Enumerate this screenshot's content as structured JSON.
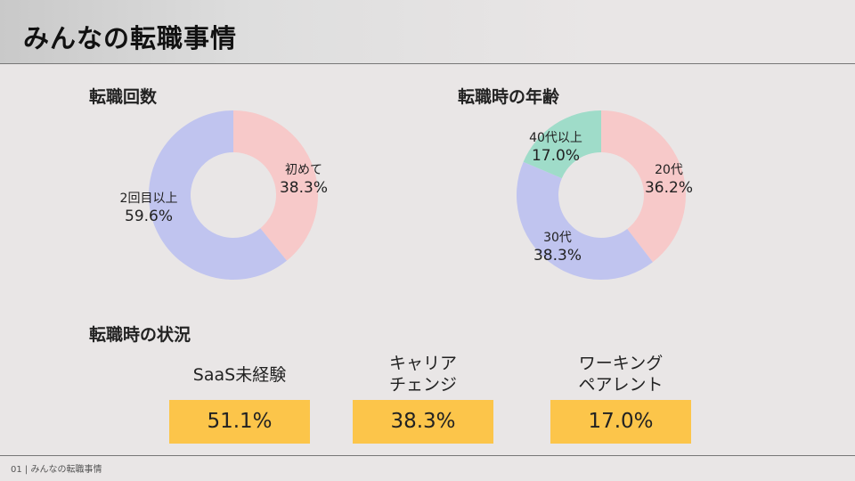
{
  "page": {
    "title": "みんなの転職事情",
    "footer": "01 | みんなの転職事情"
  },
  "sections": {
    "count_title": "転職回数",
    "age_title": "転職時の年齢",
    "status_title": "転職時の状況"
  },
  "chart_data": [
    {
      "type": "pie",
      "style": "donut",
      "title": "転職回数",
      "slices": [
        {
          "label": "初めて",
          "value": 38.3,
          "display": "38.3%",
          "color": "#f7c9c9"
        },
        {
          "label": "2回目以上",
          "value": 59.6,
          "display": "59.6%",
          "color": "#c0c4ef"
        }
      ]
    },
    {
      "type": "pie",
      "style": "donut",
      "title": "転職時の年齢",
      "slices": [
        {
          "label": "20代",
          "value": 36.2,
          "display": "36.2%",
          "color": "#f7c9c9"
        },
        {
          "label": "30代",
          "value": 38.3,
          "display": "38.3%",
          "color": "#c0c4ef"
        },
        {
          "label": "40代以上",
          "value": 17.0,
          "display": "17.0%",
          "color": "#9fdcc9"
        }
      ]
    },
    {
      "type": "table",
      "title": "転職時の状況",
      "rows": [
        {
          "label": "SaaS未経験",
          "value": 51.1,
          "display": "51.1%"
        },
        {
          "label": "キャリア\nチェンジ",
          "value": 38.3,
          "display": "38.3%"
        },
        {
          "label": "ワーキング\nペアレント",
          "value": 17.0,
          "display": "17.0%"
        }
      ],
      "color": "#fcc54a"
    }
  ]
}
